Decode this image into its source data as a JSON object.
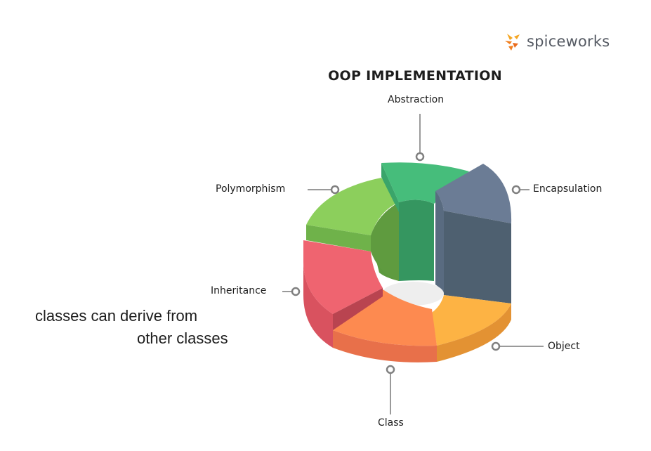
{
  "header": {
    "brand": "spiceworks",
    "title": "OOP IMPLEMENTATION"
  },
  "segments": [
    {
      "id": "abstraction",
      "label": "Abstraction",
      "color": "#46bd7b"
    },
    {
      "id": "encapsulation",
      "label": "Encapsulation",
      "color": "#6b7c95"
    },
    {
      "id": "object",
      "label": "Object",
      "color": "#fdb344"
    },
    {
      "id": "class",
      "label": "Class",
      "color": "#fd8a50"
    },
    {
      "id": "inheritance",
      "label": "Inheritance",
      "color": "#ef6470"
    },
    {
      "id": "polymorphism",
      "label": "Polymorphism",
      "color": "#8ccf5c"
    }
  ],
  "note": {
    "line1": "classes can derive from",
    "line2": "other classes"
  }
}
